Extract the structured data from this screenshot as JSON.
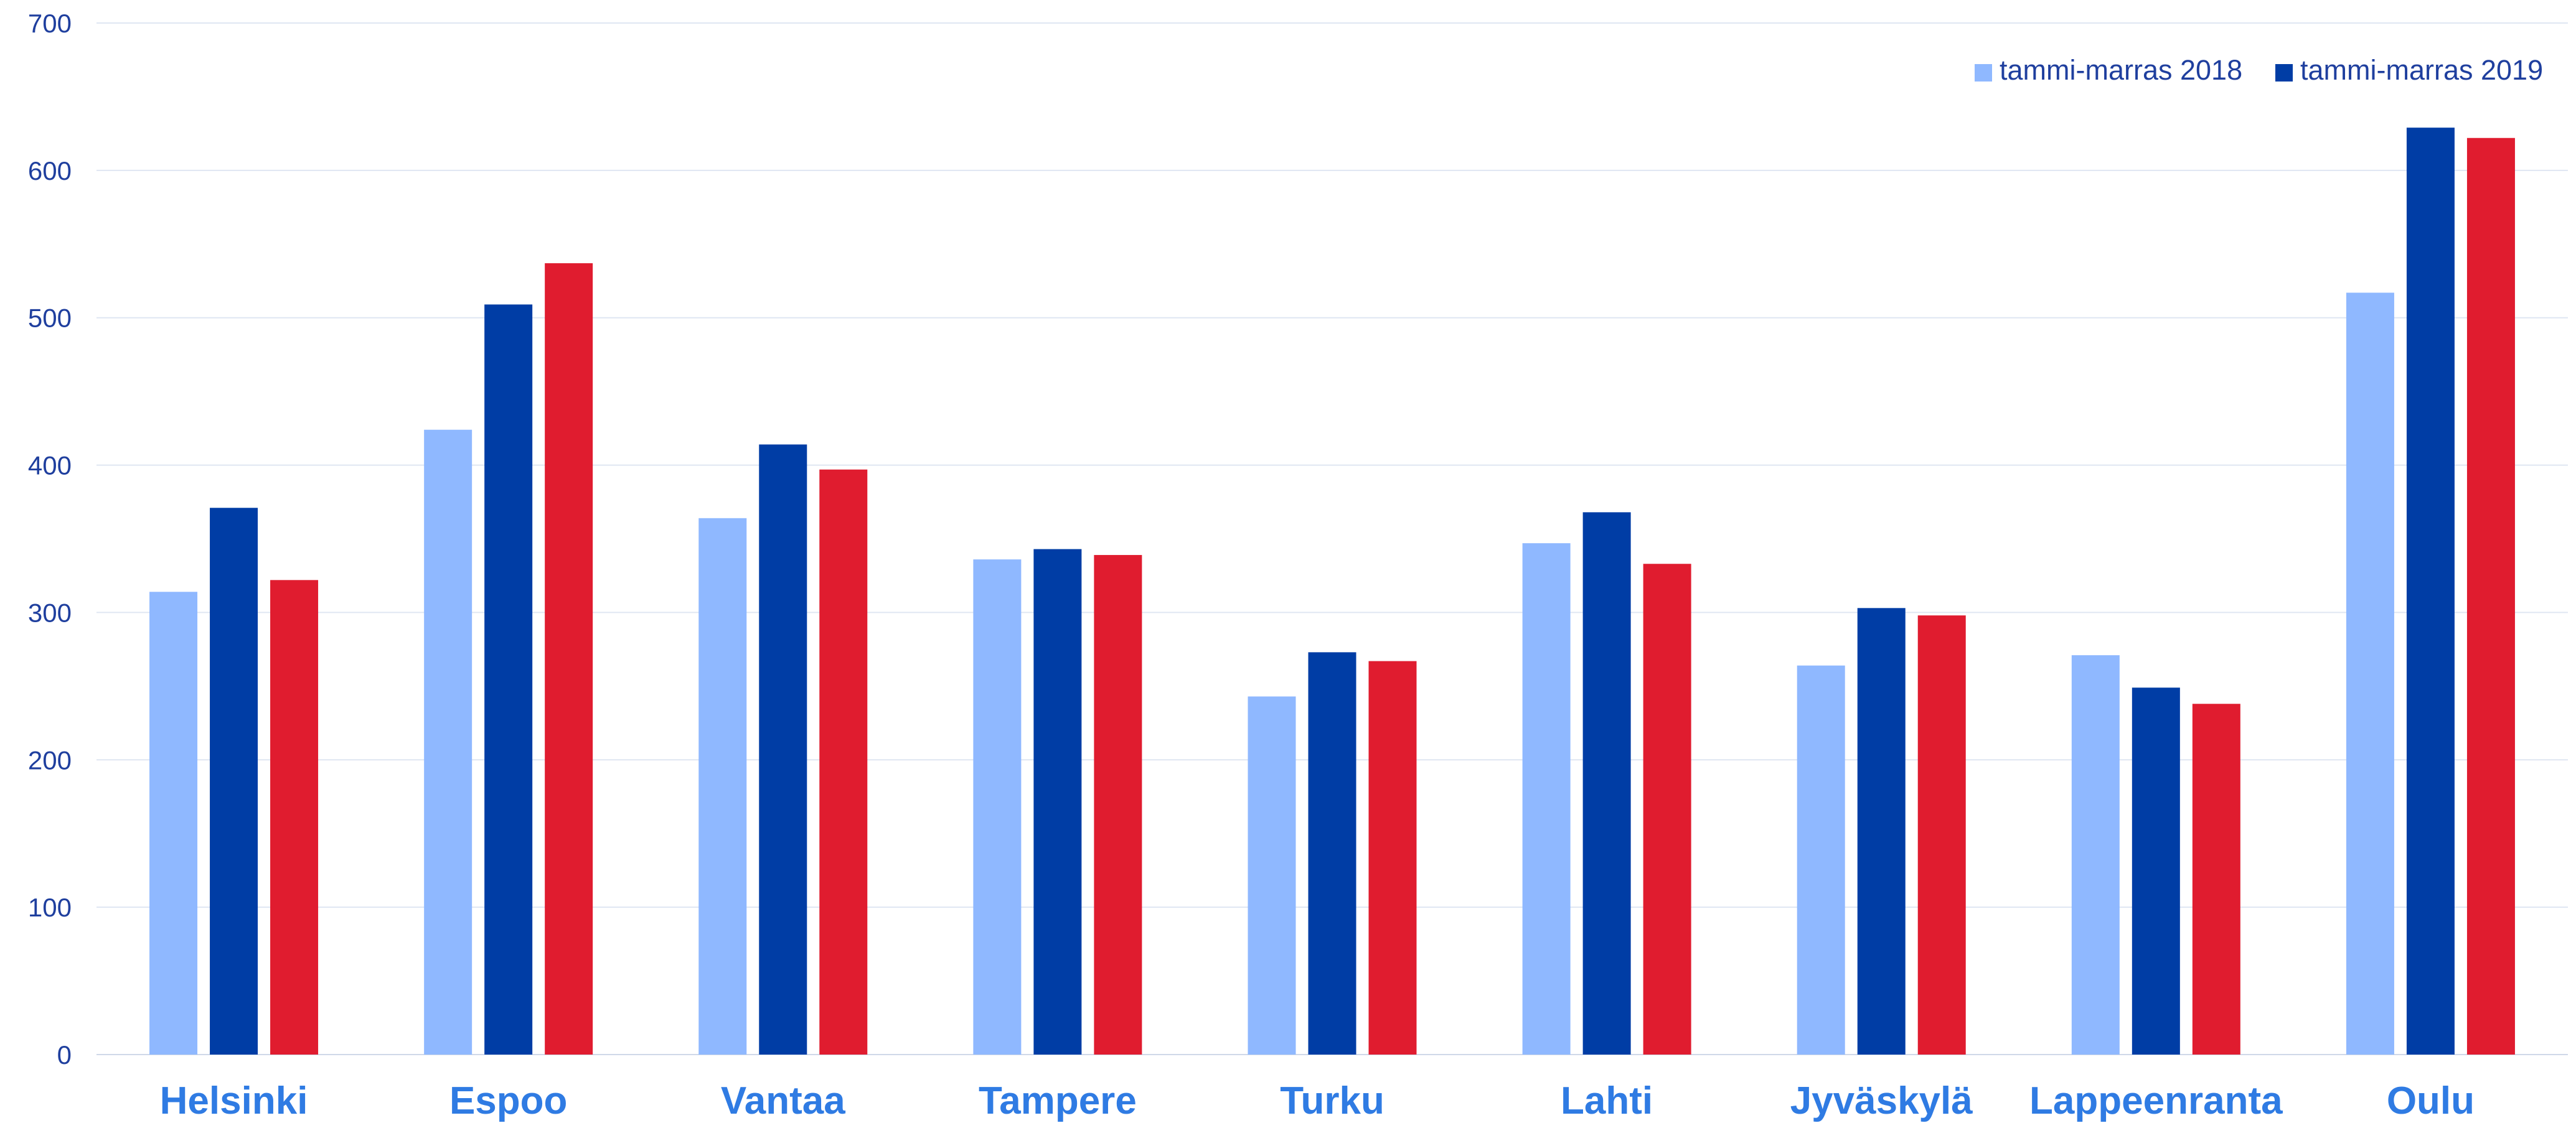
{
  "chart_data": {
    "type": "bar",
    "categories": [
      "Helsinki",
      "Espoo",
      "Vantaa",
      "Tampere",
      "Turku",
      "Lahti",
      "Jyväskylä",
      "Lappeenranta",
      "Oulu"
    ],
    "series": [
      {
        "name": "tammi-marras 2018",
        "color": "#8fb8ff",
        "values": [
          314,
          424,
          364,
          336,
          243,
          347,
          264,
          271,
          517
        ]
      },
      {
        "name": "tammi-marras 2019",
        "color": "#003da5",
        "values": [
          371,
          509,
          414,
          343,
          273,
          368,
          303,
          249,
          629
        ]
      },
      {
        "color": "#e01c2f",
        "values": [
          322,
          537,
          397,
          339,
          267,
          333,
          298,
          238,
          622
        ]
      }
    ],
    "ylim": [
      0,
      700
    ],
    "yticks": [
      0,
      100,
      200,
      300,
      400,
      500,
      600,
      700
    ],
    "grid": true,
    "legend": "top-right",
    "title": "",
    "xlabel": "",
    "ylabel": ""
  }
}
